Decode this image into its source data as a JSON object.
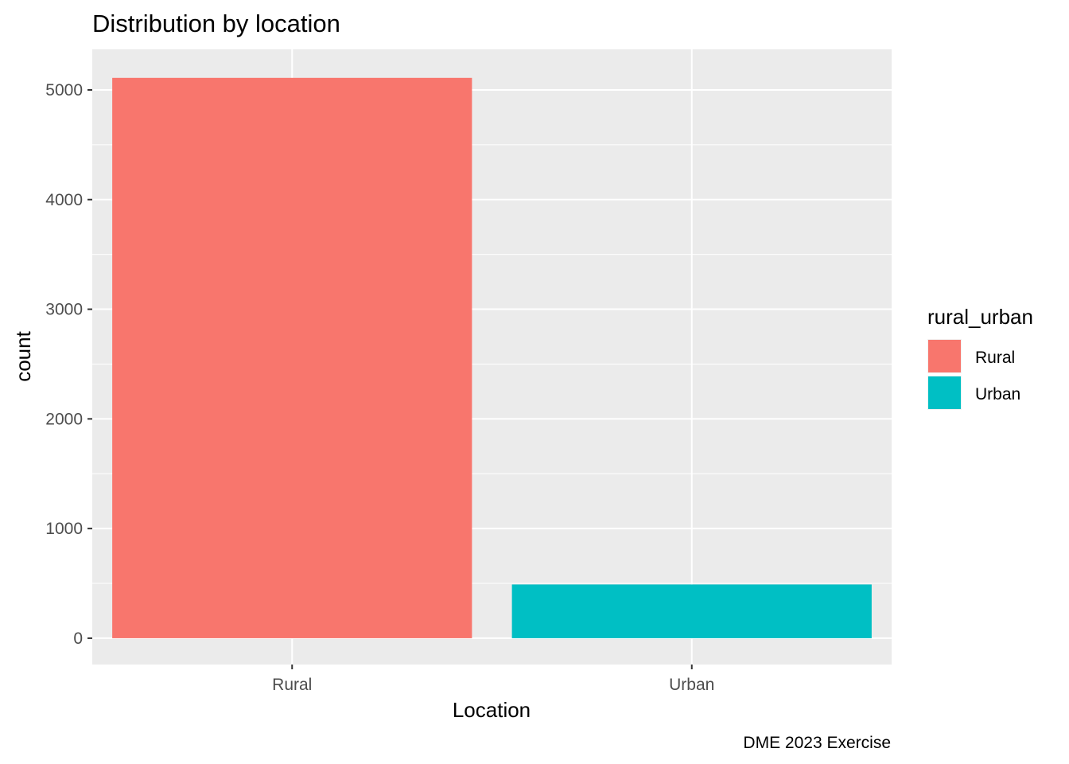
{
  "chart_data": {
    "type": "bar",
    "title": "Distribution by location",
    "xlabel": "Location",
    "ylabel": "count",
    "caption": "DME 2023 Exercise",
    "categories": [
      "Rural",
      "Urban"
    ],
    "values": [
      5110,
      490
    ],
    "colors": [
      "#F8766D",
      "#00BFC4"
    ],
    "ylim": [
      -240,
      5370
    ],
    "y_ticks": [
      0,
      1000,
      2000,
      3000,
      4000,
      5000
    ],
    "y_tick_labels": [
      "0",
      "1000",
      "2000",
      "3000",
      "4000",
      "5000"
    ],
    "grid": true,
    "panel_background": "#EBEBEB",
    "legend": {
      "title": "rural_urban",
      "position": "right",
      "entries": [
        {
          "label": "Rural",
          "color": "#F8766D"
        },
        {
          "label": "Urban",
          "color": "#00BFC4"
        }
      ]
    }
  }
}
